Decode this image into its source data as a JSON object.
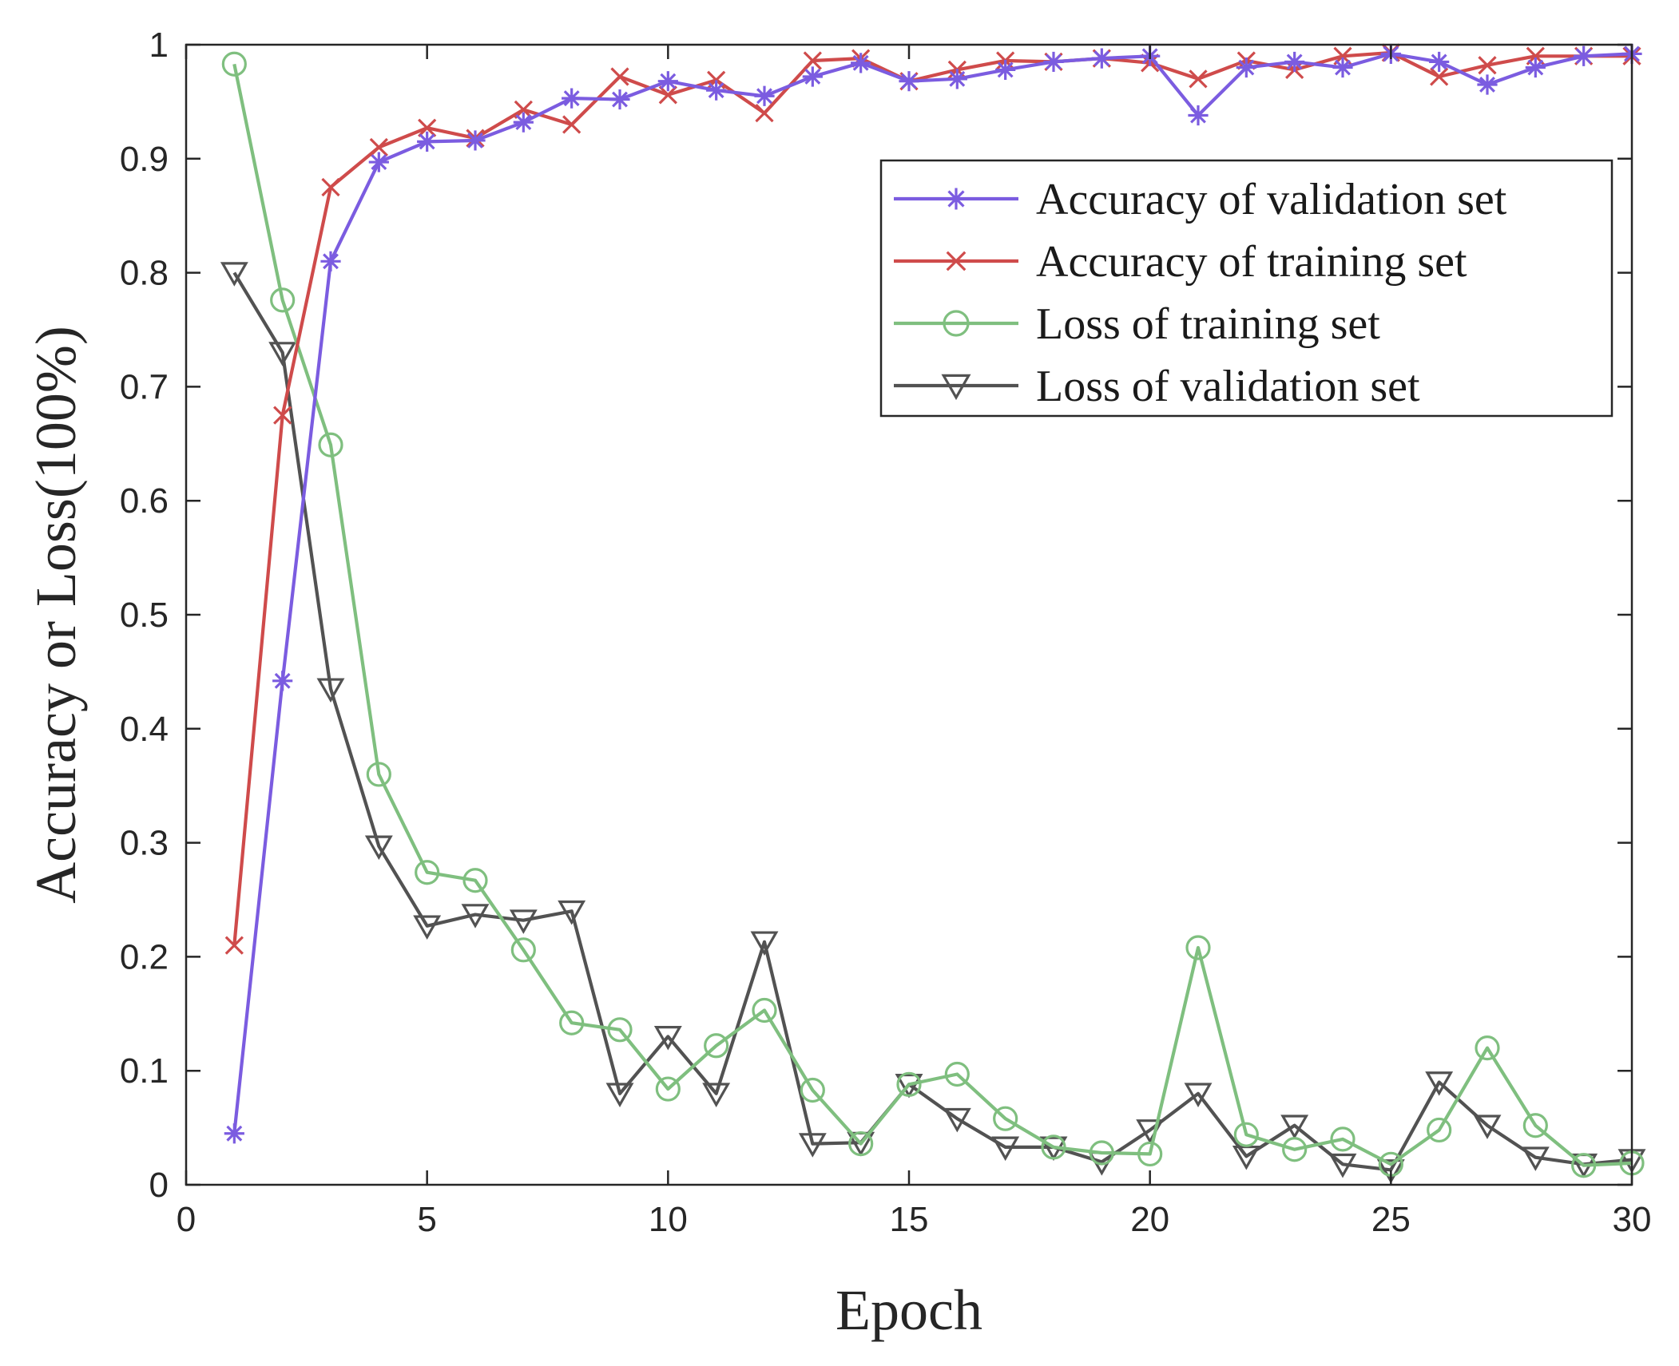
{
  "chart_data": {
    "type": "line",
    "title": "",
    "xlabel": "Epoch",
    "ylabel": "Accuracy or Loss(100%)",
    "xlim": [
      0,
      30
    ],
    "ylim": [
      0,
      1
    ],
    "xticks": [
      0,
      5,
      10,
      15,
      20,
      25,
      30
    ],
    "yticks": [
      0,
      0.1,
      0.2,
      0.3,
      0.4,
      0.5,
      0.6,
      0.7,
      0.8,
      0.9,
      1
    ],
    "ytick_labels": [
      "0",
      "0.1",
      "0.2",
      "0.3",
      "0.4",
      "0.5",
      "0.6",
      "0.7",
      "0.8",
      "0.9",
      "1"
    ],
    "legend_position": "top-right",
    "grid": false,
    "x": [
      1,
      2,
      3,
      4,
      5,
      6,
      7,
      8,
      9,
      10,
      11,
      12,
      13,
      14,
      15,
      16,
      17,
      18,
      19,
      20,
      21,
      22,
      23,
      24,
      25,
      26,
      27,
      28,
      29,
      30
    ],
    "series": [
      {
        "name": "Accuracy of validation set",
        "color": "#7b5ce0",
        "marker": "asterisk",
        "values": [
          0.045,
          0.442,
          0.81,
          0.897,
          0.915,
          0.916,
          0.932,
          0.953,
          0.952,
          0.968,
          0.96,
          0.955,
          0.972,
          0.984,
          0.968,
          0.97,
          0.978,
          0.985,
          0.988,
          0.99,
          0.938,
          0.98,
          0.985,
          0.98,
          0.992,
          0.985,
          0.965,
          0.98,
          0.99,
          0.992
        ]
      },
      {
        "name": "Accuracy of training set",
        "color": "#cf4b4b",
        "marker": "x",
        "values": [
          0.21,
          0.675,
          0.875,
          0.91,
          0.927,
          0.918,
          0.943,
          0.93,
          0.972,
          0.956,
          0.969,
          0.94,
          0.986,
          0.988,
          0.968,
          0.978,
          0.986,
          0.985,
          0.988,
          0.984,
          0.97,
          0.986,
          0.978,
          0.99,
          0.993,
          0.972,
          0.982,
          0.99,
          0.99,
          0.99
        ]
      },
      {
        "name": "Loss of training set",
        "color": "#7fbf7f",
        "marker": "circle",
        "values": [
          0.983,
          0.776,
          0.649,
          0.36,
          0.274,
          0.267,
          0.206,
          0.142,
          0.136,
          0.084,
          0.122,
          0.153,
          0.083,
          0.036,
          0.088,
          0.097,
          0.058,
          0.033,
          0.028,
          0.027,
          0.208,
          0.044,
          0.031,
          0.04,
          0.018,
          0.048,
          0.12,
          0.052,
          0.017,
          0.019
        ]
      },
      {
        "name": "Loss of validation set",
        "color": "#525252",
        "marker": "triangle-down",
        "values": [
          0.8,
          0.73,
          0.435,
          0.297,
          0.227,
          0.237,
          0.232,
          0.24,
          0.08,
          0.13,
          0.08,
          0.213,
          0.036,
          0.037,
          0.088,
          0.058,
          0.033,
          0.033,
          0.02,
          0.048,
          0.08,
          0.025,
          0.052,
          0.018,
          0.013,
          0.09,
          0.052,
          0.024,
          0.018,
          0.022
        ]
      }
    ]
  }
}
